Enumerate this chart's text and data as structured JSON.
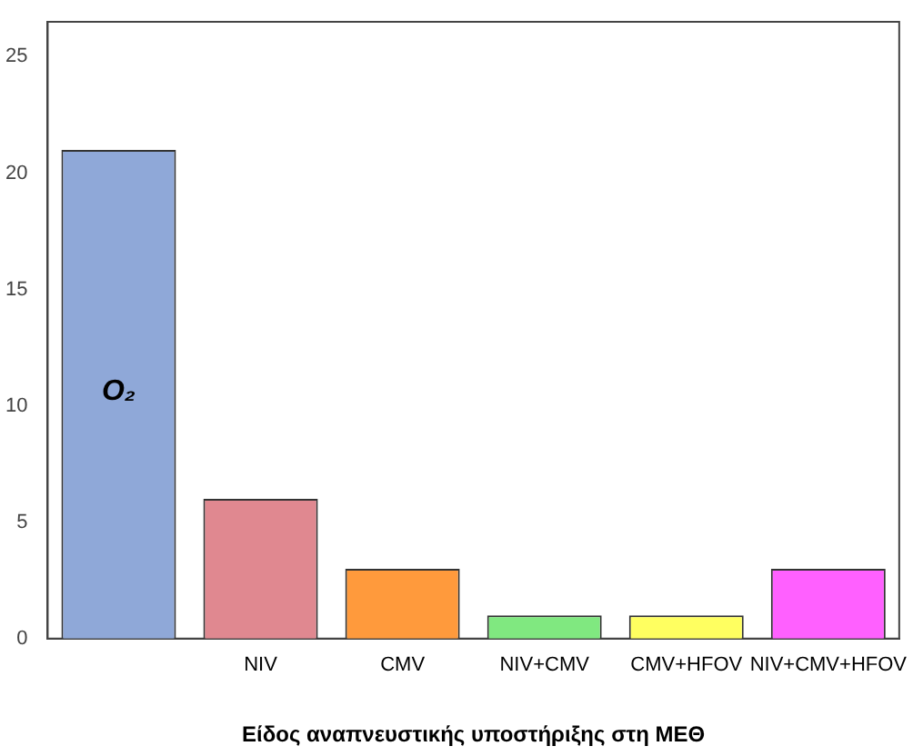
{
  "chart_data": {
    "type": "bar",
    "xlabel": "Είδος αναπνευστικής υποστήριξης στη ΜΕΘ",
    "categories": [
      null,
      "NIV",
      "CMV",
      "NIV+CMV",
      "CMV+HFOV",
      "NIV+CMV+HFOV"
    ],
    "values": [
      21,
      6,
      3,
      1,
      1,
      3
    ],
    "colors": [
      "#8fa8d8",
      "#e08890",
      "#ff9a3c",
      "#80e880",
      "#ffff60",
      "#ff60ff"
    ],
    "ylim": [
      0,
      26.5
    ],
    "yticks": [
      0,
      5,
      10,
      15,
      20,
      25
    ],
    "grid": false,
    "legend": false,
    "annotations": [
      "O₂"
    ]
  }
}
